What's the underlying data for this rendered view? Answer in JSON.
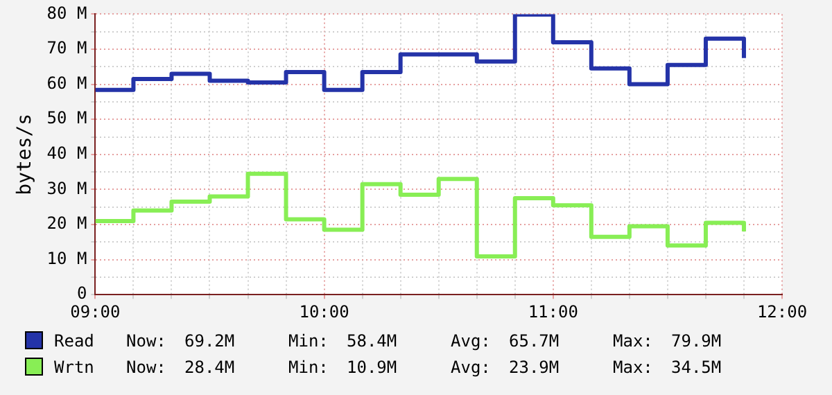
{
  "chart_data": {
    "type": "step",
    "ylabel": "bytes/s",
    "x": [
      9,
      9.1667,
      9.3333,
      9.5,
      9.6667,
      9.8333,
      10,
      10.1667,
      10.3333,
      10.5,
      10.6667,
      10.8333,
      11,
      11.1667,
      11.3333,
      11.5,
      11.6667,
      11.8333
    ],
    "series": [
      {
        "name": "Read",
        "color": "#2433a8",
        "values": [
          58.4,
          61.5,
          63,
          61,
          60.5,
          63.5,
          58.4,
          63.5,
          68.5,
          68.5,
          66.5,
          79.9,
          72,
          64.5,
          60,
          65.5,
          73,
          67.5
        ]
      },
      {
        "name": "Wrtn",
        "color": "#88ee55",
        "values": [
          21,
          24,
          26.5,
          28,
          34.5,
          21.5,
          18.5,
          31.5,
          28.5,
          33,
          10.9,
          27.5,
          25.5,
          16.5,
          19.5,
          14,
          20.5,
          18
        ]
      }
    ],
    "xlim": [
      9,
      12
    ],
    "xticks": [
      {
        "value": 9,
        "label": "09:00"
      },
      {
        "value": 9.1667,
        "label": null
      },
      {
        "value": 9.3333,
        "label": null
      },
      {
        "value": 9.5,
        "label": null
      },
      {
        "value": 9.6667,
        "label": null
      },
      {
        "value": 9.8333,
        "label": null
      },
      {
        "value": 10,
        "label": "10:00"
      },
      {
        "value": 10.1667,
        "label": null
      },
      {
        "value": 10.3333,
        "label": null
      },
      {
        "value": 10.5,
        "label": null
      },
      {
        "value": 10.6667,
        "label": null
      },
      {
        "value": 10.8333,
        "label": null
      },
      {
        "value": 11,
        "label": "11:00"
      },
      {
        "value": 11.1667,
        "label": null
      },
      {
        "value": 11.3333,
        "label": null
      },
      {
        "value": 11.5,
        "label": null
      },
      {
        "value": 11.6667,
        "label": null
      },
      {
        "value": 11.8333,
        "label": null
      },
      {
        "value": 12,
        "label": "12:00"
      }
    ],
    "ylim": [
      0,
      80
    ],
    "yticks": [
      0,
      {
        "value": 5,
        "label": null
      },
      {
        "value": 10,
        "label": "10 M"
      },
      {
        "value": 15,
        "label": null
      },
      {
        "value": 20,
        "label": "20 M"
      },
      {
        "value": 25,
        "label": null
      },
      {
        "value": 30,
        "label": "30 M"
      },
      {
        "value": 35,
        "label": null
      },
      {
        "value": 40,
        "label": "40 M"
      },
      {
        "value": 45,
        "label": null
      },
      {
        "value": 50,
        "label": "50 M"
      },
      {
        "value": 55,
        "label": null
      },
      {
        "value": 60,
        "label": "60 M"
      },
      {
        "value": 65,
        "label": null
      },
      {
        "value": 70,
        "label": "70 M"
      },
      {
        "value": 75,
        "label": null
      },
      {
        "value": 80,
        "label": "80 M"
      }
    ],
    "grid": true,
    "legend": "bottom",
    "marker": "none",
    "line_style": "solid",
    "annotations": [
      "Now:",
      "69.2M",
      "Min:",
      "58.4M",
      "Avg:",
      "65.7M",
      "Max:",
      "79.9M",
      "Now:",
      "28.4M",
      "Min:",
      "10.9M",
      "Avg:",
      "23.9M",
      "Max:",
      "34.5M"
    ]
  }
}
